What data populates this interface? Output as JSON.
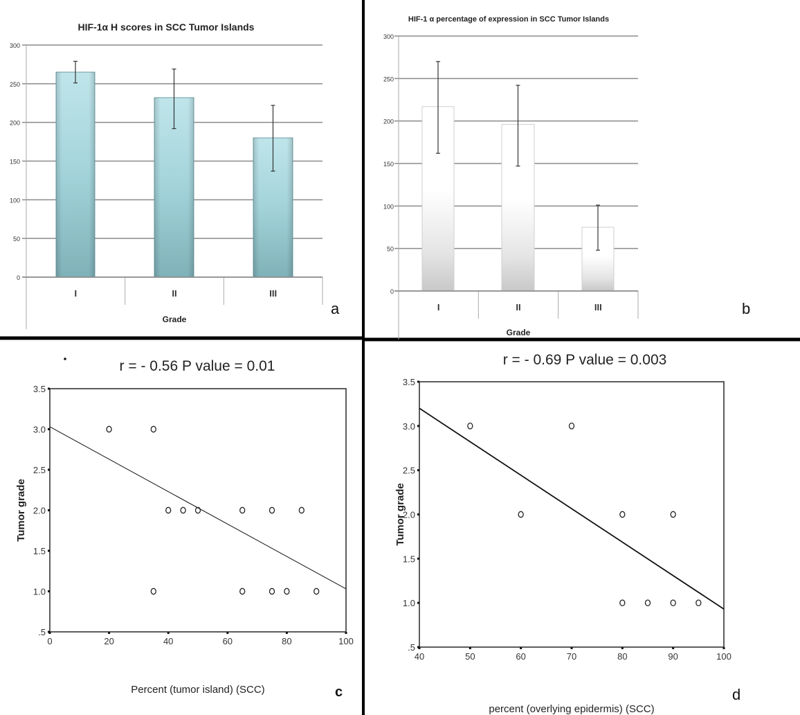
{
  "figure": {
    "panel_letters": [
      "a",
      "b",
      "c",
      "d"
    ]
  },
  "chart_data": [
    {
      "id": "a",
      "type": "bar",
      "title": "HIF-1α H scores in SCC Tumor Islands",
      "xlabel": "Grade",
      "ylabel": "",
      "categories": [
        "I",
        "II",
        "III"
      ],
      "values": [
        265,
        232,
        180
      ],
      "error_low": [
        251,
        192,
        137
      ],
      "error_high": [
        279,
        269,
        222
      ],
      "ylim": [
        0,
        300
      ],
      "yticks": [
        0,
        50,
        100,
        150,
        200,
        250,
        300
      ],
      "grid": true,
      "bar_color": "#a9d6dc"
    },
    {
      "id": "b",
      "type": "bar",
      "title": "HIF-1 α percentage of expression in SCC Tumor Islands",
      "xlabel": "Grade",
      "ylabel": "",
      "categories": [
        "I",
        "II",
        "III"
      ],
      "values": [
        217,
        196,
        75
      ],
      "error_low": [
        162,
        147,
        48
      ],
      "error_high": [
        270,
        242,
        101
      ],
      "ylim": [
        0,
        300
      ],
      "yticks": [
        0,
        50,
        100,
        150,
        200,
        250,
        300
      ],
      "grid": true,
      "bar_color": "#d9d9d9"
    },
    {
      "id": "c",
      "type": "scatter",
      "title": "r = - 0.56    P value = 0.01",
      "xlabel": "Percent (tumor island) (SCC)",
      "ylabel": "Tumor grade",
      "xlim": [
        0,
        100
      ],
      "ylim": [
        0.5,
        3.5
      ],
      "xticks": [
        0,
        20,
        40,
        60,
        80,
        100
      ],
      "yticks": [
        0.5,
        1.0,
        1.5,
        2.0,
        2.5,
        3.0,
        3.5
      ],
      "ytick_labels": [
        ".5",
        "1.0",
        "1.5",
        "2.0",
        "2.5",
        "3.0",
        "3.5"
      ],
      "points": [
        {
          "x": 20,
          "y": 3
        },
        {
          "x": 35,
          "y": 3
        },
        {
          "x": 40,
          "y": 2
        },
        {
          "x": 45,
          "y": 2
        },
        {
          "x": 50,
          "y": 2
        },
        {
          "x": 65,
          "y": 2
        },
        {
          "x": 75,
          "y": 2
        },
        {
          "x": 85,
          "y": 2
        },
        {
          "x": 35,
          "y": 1
        },
        {
          "x": 65,
          "y": 1
        },
        {
          "x": 75,
          "y": 1
        },
        {
          "x": 80,
          "y": 1
        },
        {
          "x": 90,
          "y": 1
        }
      ],
      "fit_line": {
        "x": [
          0,
          100
        ],
        "y": [
          3.03,
          1.03
        ]
      },
      "grid": false
    },
    {
      "id": "d",
      "type": "scatter",
      "title": "r = - 0.69     P value = 0.003",
      "xlabel": "percent (overlying epidermis) (SCC)",
      "ylabel": "Tumor grade",
      "xlim": [
        40,
        100
      ],
      "ylim": [
        0.5,
        3.5
      ],
      "xticks": [
        40,
        50,
        60,
        70,
        80,
        90,
        100
      ],
      "yticks": [
        0.5,
        1.0,
        1.5,
        2.0,
        2.5,
        3.0,
        3.5
      ],
      "ytick_labels": [
        ".5",
        "1.0",
        "1.5",
        "2.0",
        "2.5",
        "3.0",
        "3.5"
      ],
      "points": [
        {
          "x": 50,
          "y": 3
        },
        {
          "x": 70,
          "y": 3
        },
        {
          "x": 60,
          "y": 2
        },
        {
          "x": 80,
          "y": 2
        },
        {
          "x": 90,
          "y": 2
        },
        {
          "x": 80,
          "y": 1
        },
        {
          "x": 85,
          "y": 1
        },
        {
          "x": 90,
          "y": 1
        },
        {
          "x": 95,
          "y": 1
        }
      ],
      "fit_line": {
        "x": [
          40,
          100
        ],
        "y": [
          3.2,
          0.93
        ]
      },
      "grid": false
    }
  ]
}
